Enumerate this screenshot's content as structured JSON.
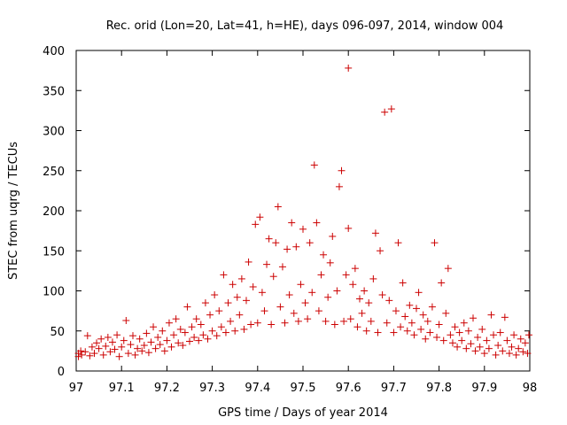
{
  "chart_data": {
    "type": "scatter",
    "title": "Rec. orid (Lon=20, Lat=41, h=HE), days 096-097, 2014, window 004",
    "xlabel": "GPS time / Days of year 2014",
    "ylabel": "STEC from uqrg / TECUs",
    "xlim": [
      97,
      98
    ],
    "ylim": [
      0,
      400
    ],
    "x_ticks": [
      "97",
      "97.1",
      "97.2",
      "97.3",
      "97.4",
      "97.5",
      "97.6",
      "97.7",
      "97.8",
      "97.9",
      "98"
    ],
    "y_ticks": [
      "0",
      "50",
      "100",
      "150",
      "200",
      "250",
      "300",
      "350",
      "400"
    ],
    "marker": "+",
    "color": "#cc0000",
    "grid": false,
    "series": [
      {
        "points": [
          [
            97.005,
            22
          ],
          [
            97.005,
            18
          ],
          [
            97.01,
            25
          ],
          [
            97.012,
            20
          ],
          [
            97.02,
            24
          ],
          [
            97.025,
            44
          ],
          [
            97.03,
            19
          ],
          [
            97.035,
            30
          ],
          [
            97.04,
            22
          ],
          [
            97.045,
            35
          ],
          [
            97.05,
            28
          ],
          [
            97.055,
            40
          ],
          [
            97.06,
            20
          ],
          [
            97.065,
            31
          ],
          [
            97.07,
            42
          ],
          [
            97.075,
            24
          ],
          [
            97.08,
            36
          ],
          [
            97.085,
            27
          ],
          [
            97.09,
            45
          ],
          [
            97.095,
            18
          ],
          [
            97.1,
            30
          ],
          [
            97.105,
            38
          ],
          [
            97.11,
            63
          ],
          [
            97.115,
            22
          ],
          [
            97.12,
            33
          ],
          [
            97.125,
            44
          ],
          [
            97.13,
            20
          ],
          [
            97.135,
            28
          ],
          [
            97.14,
            40
          ],
          [
            97.145,
            25
          ],
          [
            97.15,
            32
          ],
          [
            97.155,
            47
          ],
          [
            97.16,
            23
          ],
          [
            97.165,
            36
          ],
          [
            97.17,
            55
          ],
          [
            97.175,
            28
          ],
          [
            97.18,
            42
          ],
          [
            97.185,
            33
          ],
          [
            97.19,
            50
          ],
          [
            97.195,
            25
          ],
          [
            97.2,
            38
          ],
          [
            97.205,
            60
          ],
          [
            97.21,
            30
          ],
          [
            97.215,
            45
          ],
          [
            97.22,
            65
          ],
          [
            97.225,
            35
          ],
          [
            97.23,
            52
          ],
          [
            97.235,
            32
          ],
          [
            97.24,
            48
          ],
          [
            97.245,
            80
          ],
          [
            97.25,
            37
          ],
          [
            97.255,
            55
          ],
          [
            97.26,
            42
          ],
          [
            97.265,
            65
          ],
          [
            97.27,
            38
          ],
          [
            97.275,
            58
          ],
          [
            97.28,
            45
          ],
          [
            97.285,
            85
          ],
          [
            97.29,
            40
          ],
          [
            97.295,
            70
          ],
          [
            97.3,
            50
          ],
          [
            97.305,
            95
          ],
          [
            97.31,
            44
          ],
          [
            97.315,
            75
          ],
          [
            97.32,
            55
          ],
          [
            97.325,
            120
          ],
          [
            97.33,
            48
          ],
          [
            97.335,
            85
          ],
          [
            97.34,
            62
          ],
          [
            97.345,
            108
          ],
          [
            97.35,
            50
          ],
          [
            97.355,
            92
          ],
          [
            97.36,
            70
          ],
          [
            97.365,
            115
          ],
          [
            97.37,
            52
          ],
          [
            97.375,
            88
          ],
          [
            97.38,
            136
          ],
          [
            97.385,
            58
          ],
          [
            97.39,
            105
          ],
          [
            97.395,
            183
          ],
          [
            97.4,
            60
          ],
          [
            97.405,
            192
          ],
          [
            97.41,
            98
          ],
          [
            97.415,
            75
          ],
          [
            97.42,
            133
          ],
          [
            97.425,
            165
          ],
          [
            97.43,
            58
          ],
          [
            97.435,
            118
          ],
          [
            97.44,
            160
          ],
          [
            97.445,
            205
          ],
          [
            97.45,
            80
          ],
          [
            97.455,
            130
          ],
          [
            97.46,
            60
          ],
          [
            97.465,
            152
          ],
          [
            97.47,
            95
          ],
          [
            97.475,
            185
          ],
          [
            97.48,
            72
          ],
          [
            97.485,
            155
          ],
          [
            97.49,
            62
          ],
          [
            97.495,
            108
          ],
          [
            97.5,
            177
          ],
          [
            97.505,
            85
          ],
          [
            97.51,
            65
          ],
          [
            97.515,
            160
          ],
          [
            97.52,
            98
          ],
          [
            97.525,
            257
          ],
          [
            97.53,
            185
          ],
          [
            97.535,
            75
          ],
          [
            97.54,
            120
          ],
          [
            97.545,
            145
          ],
          [
            97.55,
            62
          ],
          [
            97.555,
            92
          ],
          [
            97.56,
            135
          ],
          [
            97.565,
            168
          ],
          [
            97.57,
            58
          ],
          [
            97.575,
            100
          ],
          [
            97.58,
            230
          ],
          [
            97.585,
            250
          ],
          [
            97.59,
            62
          ],
          [
            97.595,
            120
          ],
          [
            97.6,
            378
          ],
          [
            97.6,
            178
          ],
          [
            97.605,
            65
          ],
          [
            97.61,
            108
          ],
          [
            97.615,
            128
          ],
          [
            97.62,
            55
          ],
          [
            97.625,
            90
          ],
          [
            97.63,
            72
          ],
          [
            97.635,
            100
          ],
          [
            97.64,
            50
          ],
          [
            97.645,
            85
          ],
          [
            97.65,
            62
          ],
          [
            97.655,
            115
          ],
          [
            97.66,
            172
          ],
          [
            97.665,
            48
          ],
          [
            97.67,
            150
          ],
          [
            97.675,
            95
          ],
          [
            97.68,
            323
          ],
          [
            97.685,
            60
          ],
          [
            97.69,
            88
          ],
          [
            97.695,
            327
          ],
          [
            97.7,
            48
          ],
          [
            97.705,
            75
          ],
          [
            97.71,
            160
          ],
          [
            97.715,
            55
          ],
          [
            97.72,
            110
          ],
          [
            97.725,
            68
          ],
          [
            97.73,
            50
          ],
          [
            97.735,
            82
          ],
          [
            97.74,
            60
          ],
          [
            97.745,
            45
          ],
          [
            97.75,
            78
          ],
          [
            97.755,
            98
          ],
          [
            97.76,
            52
          ],
          [
            97.765,
            70
          ],
          [
            97.77,
            40
          ],
          [
            97.775,
            62
          ],
          [
            97.78,
            48
          ],
          [
            97.785,
            80
          ],
          [
            97.79,
            160
          ],
          [
            97.795,
            42
          ],
          [
            97.8,
            58
          ],
          [
            97.805,
            110
          ],
          [
            97.81,
            38
          ],
          [
            97.815,
            72
          ],
          [
            97.82,
            128
          ],
          [
            97.825,
            45
          ],
          [
            97.83,
            35
          ],
          [
            97.835,
            55
          ],
          [
            97.84,
            30
          ],
          [
            97.845,
            48
          ],
          [
            97.85,
            38
          ],
          [
            97.855,
            60
          ],
          [
            97.86,
            28
          ],
          [
            97.865,
            50
          ],
          [
            97.87,
            34
          ],
          [
            97.875,
            66
          ],
          [
            97.88,
            25
          ],
          [
            97.885,
            42
          ],
          [
            97.89,
            30
          ],
          [
            97.895,
            52
          ],
          [
            97.9,
            22
          ],
          [
            97.905,
            38
          ],
          [
            97.91,
            28
          ],
          [
            97.915,
            70
          ],
          [
            97.92,
            45
          ],
          [
            97.925,
            20
          ],
          [
            97.93,
            32
          ],
          [
            97.935,
            48
          ],
          [
            97.94,
            25
          ],
          [
            97.945,
            67
          ],
          [
            97.95,
            38
          ],
          [
            97.955,
            22
          ],
          [
            97.96,
            30
          ],
          [
            97.965,
            45
          ],
          [
            97.97,
            20
          ],
          [
            97.975,
            28
          ],
          [
            97.98,
            40
          ],
          [
            97.985,
            24
          ],
          [
            97.99,
            35
          ],
          [
            97.995,
            22
          ],
          [
            97.998,
            45
          ]
        ]
      }
    ]
  }
}
